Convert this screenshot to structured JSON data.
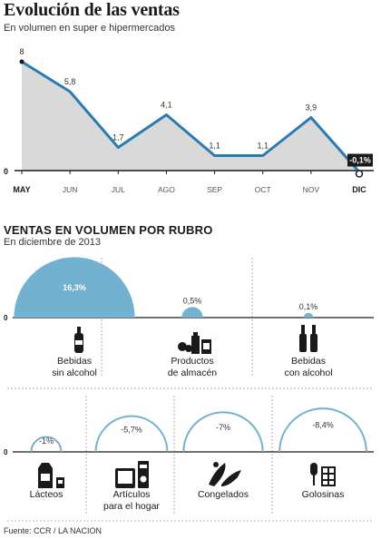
{
  "header": {
    "title": "Evolución de las ventas",
    "subtitle": "En volumen en super e hipermercados"
  },
  "section2": {
    "title": "VENTAS EN VOLUMEN POR RUBRO",
    "subtitle": "En diciembre de 2013"
  },
  "source": "Fuente: CCR / LA NACION",
  "colors": {
    "line": "#2a7bb0",
    "area": "#d9d9d9",
    "bubble": "#72b2d0",
    "highlight_box": "#1a1a1a"
  },
  "chart_data": [
    {
      "type": "area",
      "title": "Evolución de las ventas",
      "subtitle": "En volumen en super e hipermercados",
      "categories": [
        "MAY",
        "JUN",
        "JUL",
        "AGO",
        "SEP",
        "OCT",
        "NOV",
        "DIC"
      ],
      "values": [
        8,
        5.8,
        1.7,
        4.1,
        1.1,
        1.1,
        3.9,
        -0.1
      ],
      "value_labels": [
        "8",
        "5,8",
        "1,7",
        "4,1",
        "1,1",
        "1,1",
        "3,9",
        "-0,1%"
      ],
      "bold_categories": [
        "MAY",
        "DIC"
      ],
      "highlighted": "DIC",
      "ylim": [
        0,
        8
      ],
      "y_tick_labels": [
        "0"
      ],
      "grid": false
    },
    {
      "type": "bubble",
      "title": "VENTAS EN VOLUMEN POR RUBRO",
      "subtitle": "En diciembre de 2013",
      "y_tick_labels": [
        "0"
      ],
      "rows": [
        {
          "direction": "positive",
          "items": [
            {
              "label": [
                "Bebidas",
                "sin alcohol"
              ],
              "value": 16.3,
              "value_label": "16,3%",
              "icon": "bottles-icon"
            },
            {
              "label": [
                "Productos",
                "de almacén"
              ],
              "value": 0.5,
              "value_label": "0,5%",
              "icon": "pantry-products-icon"
            },
            {
              "label": [
                "Bebidas",
                "con alcohol"
              ],
              "value": 0.1,
              "value_label": "0,1%",
              "icon": "wine-bottles-icon"
            }
          ]
        },
        {
          "direction": "negative",
          "items": [
            {
              "label": [
                "Lácteos"
              ],
              "value": -1,
              "value_label": "-1%",
              "icon": "milk-carton-icon"
            },
            {
              "label": [
                "Artículos",
                "para el hogar"
              ],
              "value": -5.7,
              "value_label": "-5,7%",
              "icon": "appliances-icon"
            },
            {
              "label": [
                "Congelados"
              ],
              "value": -7,
              "value_label": "-7%",
              "icon": "frozen-fish-icon"
            },
            {
              "label": [
                "Golosinas"
              ],
              "value": -8.4,
              "value_label": "-8,4%",
              "icon": "candy-icon"
            }
          ]
        }
      ]
    }
  ]
}
